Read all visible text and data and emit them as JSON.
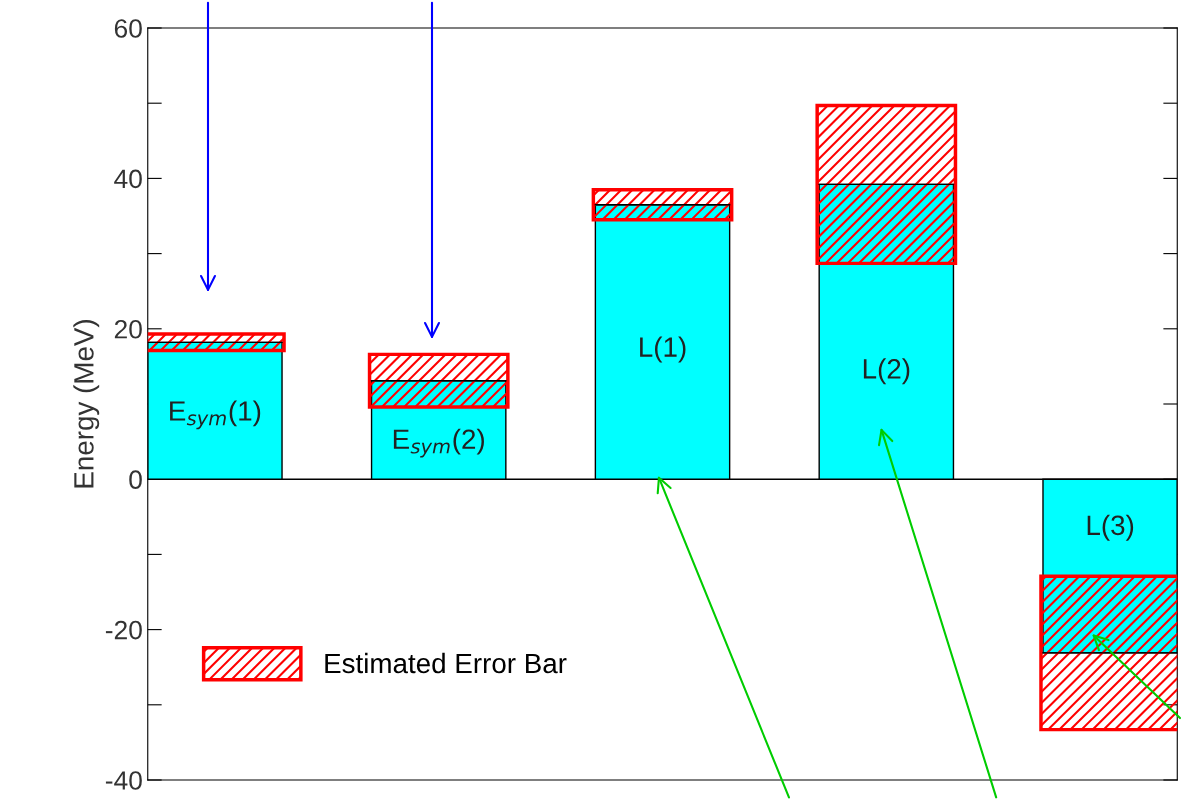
{
  "chart_data": {
    "type": "bar",
    "ylabel": "Energy (MeV)",
    "categories": [
      "E$_{sym}$(1)",
      "E$_{sym}$(2)",
      "L(1)",
      "L(2)",
      "L(3)"
    ],
    "series": [
      {
        "color": "#00ffff",
        "values": [
          18.2,
          13.1,
          36.5,
          39.2,
          -23.1
        ]
      },
      {
        "name": "Estimated Error Bar",
        "color": "#ff0000",
        "base": [
          17.1,
          9.6,
          34.5,
          28.7,
          -33.3
        ],
        "values": [
          2.2,
          7.0,
          4.0,
          21.0,
          20.4
        ]
      }
    ],
    "ylim": [
      -40,
      60
    ],
    "yticks": [
      -40,
      {
        "value": -30,
        "label": null
      },
      -20,
      {
        "value": -10,
        "label": null
      },
      0,
      {
        "value": 10,
        "label": null
      },
      20,
      {
        "value": 30,
        "label": null
      },
      40,
      {
        "value": 50,
        "label": null
      },
      60
    ],
    "ref_lines": [
      {
        "axis": "y",
        "value": 0,
        "color": "#000000"
      }
    ],
    "tick_labels": "y",
    "legend": "bottom left"
  }
}
